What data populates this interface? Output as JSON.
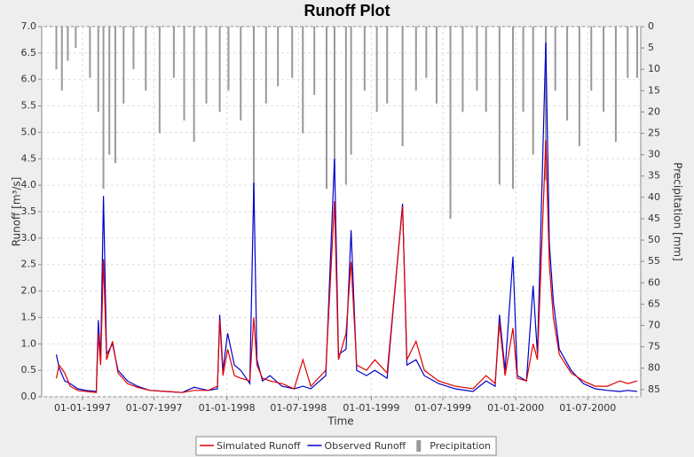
{
  "chart_data": {
    "type": "line",
    "title": "Runoff Plot",
    "x_label": "Time",
    "y_label": "Runoff [m³/s]",
    "y2_label": "Precipitation [mm]",
    "grid": true,
    "y2_inverted": true,
    "xlim": [
      "1996-09-20",
      "2000-11-12"
    ],
    "xticks": [
      {
        "value": "1997-01-01",
        "label": "01-01-1997"
      },
      {
        "value": "1997-07-01",
        "label": "01-07-1997"
      },
      {
        "value": "1998-01-01",
        "label": "01-01-1998"
      },
      {
        "value": "1998-07-01",
        "label": "01-07-1998"
      },
      {
        "value": "1999-01-01",
        "label": "01-01-1999"
      },
      {
        "value": "1999-07-01",
        "label": "01-07-1999"
      },
      {
        "value": "2000-01-01",
        "label": "01-01-2000"
      },
      {
        "value": "2000-07-01",
        "label": "01-07-2000"
      }
    ],
    "ylim": [
      0,
      7
    ],
    "yticks": [
      {
        "value": 0,
        "label": "0.0"
      },
      0.5,
      {
        "value": 1,
        "label": "1.0"
      },
      1.5,
      {
        "value": 2,
        "label": "2.0"
      },
      2.5,
      {
        "value": 3,
        "label": "3.0"
      },
      3.5,
      {
        "value": 4,
        "label": "4.0"
      },
      4.5,
      {
        "value": 5,
        "label": "5.0"
      },
      5.5,
      {
        "value": 6,
        "label": "6.0"
      },
      6.5,
      {
        "value": 7,
        "label": "7.0"
      }
    ],
    "y2lim": [
      0,
      86.7
    ],
    "y2ticks": [
      0,
      5,
      10,
      15,
      20,
      25,
      30,
      35,
      40,
      45,
      50,
      55,
      60,
      65,
      70,
      75,
      80,
      85
    ],
    "x": [
      "1996-10-27",
      "1996-11-03",
      "1996-11-17",
      "1996-12-01",
      "1996-12-20",
      "1997-01-10",
      "1997-02-05",
      "1997-02-10",
      "1997-02-16",
      "1997-02-23",
      "1997-03-03",
      "1997-03-18",
      "1997-04-01",
      "1997-04-25",
      "1997-05-20",
      "1997-06-20",
      "1997-08-01",
      "1997-09-10",
      "1997-10-10",
      "1997-11-15",
      "1997-12-08",
      "1997-12-14",
      "1997-12-22",
      "1998-01-03",
      "1998-01-20",
      "1998-02-05",
      "1998-02-28",
      "1998-03-10",
      "1998-03-18",
      "1998-04-01",
      "1998-04-20",
      "1998-05-20",
      "1998-06-20",
      "1998-07-12",
      "1998-08-01",
      "1998-09-08",
      "1998-09-30",
      "1998-10-10",
      "1998-10-29",
      "1998-11-11",
      "1998-11-25",
      "1998-12-20",
      "1999-01-10",
      "1999-02-10",
      "1999-03-21",
      "1999-04-01",
      "1999-04-24",
      "1999-05-15",
      "1999-06-20",
      "1999-08-01",
      "1999-09-15",
      "1999-10-18",
      "1999-11-10",
      "1999-11-21",
      "1999-12-05",
      "1999-12-25",
      "2000-01-05",
      "2000-01-28",
      "2000-02-14",
      "2000-02-25",
      "2000-03-17",
      "2000-03-26",
      "2000-04-05",
      "2000-04-20",
      "2000-05-20",
      "2000-06-20",
      "2000-07-20",
      "2000-08-20",
      "2000-09-20",
      "2000-10-10",
      "2000-11-03"
    ],
    "series": [
      {
        "name": "Simulated Runoff",
        "type": "line",
        "color": "#e00000",
        "values": [
          0.35,
          0.6,
          0.45,
          0.2,
          0.12,
          0.1,
          0.08,
          1.2,
          0.6,
          2.6,
          0.7,
          1.05,
          0.45,
          0.25,
          0.18,
          0.12,
          0.1,
          0.08,
          0.12,
          0.12,
          0.2,
          1.45,
          0.4,
          0.9,
          0.4,
          0.35,
          0.3,
          1.5,
          0.6,
          0.35,
          0.3,
          0.25,
          0.15,
          0.7,
          0.2,
          0.5,
          3.7,
          0.7,
          1.2,
          2.55,
          0.6,
          0.5,
          0.7,
          0.45,
          3.6,
          0.7,
          1.05,
          0.5,
          0.3,
          0.2,
          0.15,
          0.4,
          0.25,
          1.4,
          0.4,
          1.3,
          0.35,
          0.3,
          1.0,
          0.7,
          4.85,
          2.5,
          1.5,
          0.8,
          0.45,
          0.3,
          0.2,
          0.2,
          0.3,
          0.25,
          0.3
        ]
      },
      {
        "name": "Observed Runoff",
        "type": "line",
        "color": "#0000cc",
        "values": [
          0.8,
          0.55,
          0.3,
          0.25,
          0.15,
          0.12,
          0.1,
          1.45,
          0.7,
          3.8,
          0.8,
          1.0,
          0.5,
          0.3,
          0.2,
          0.12,
          0.1,
          0.08,
          0.18,
          0.12,
          0.15,
          1.55,
          0.5,
          1.2,
          0.6,
          0.5,
          0.25,
          4.05,
          0.7,
          0.3,
          0.4,
          0.2,
          0.15,
          0.2,
          0.15,
          0.4,
          4.5,
          0.8,
          0.9,
          3.15,
          0.5,
          0.4,
          0.5,
          0.35,
          3.65,
          0.6,
          0.7,
          0.4,
          0.25,
          0.15,
          0.1,
          0.3,
          0.2,
          1.55,
          0.5,
          2.65,
          0.4,
          0.3,
          2.1,
          0.8,
          6.7,
          2.9,
          1.8,
          0.9,
          0.5,
          0.25,
          0.15,
          0.12,
          0.1,
          0.12,
          0.1
        ]
      },
      {
        "name": "Precipitation",
        "type": "bar",
        "axis": "y2",
        "color": "#999999",
        "x": [
          "1996-10-27",
          "1996-11-10",
          "1996-11-25",
          "1996-12-15",
          "1997-01-20",
          "1997-02-10",
          "1997-02-23",
          "1997-03-10",
          "1997-03-25",
          "1997-04-15",
          "1997-05-10",
          "1997-06-10",
          "1997-07-15",
          "1997-08-20",
          "1997-09-15",
          "1997-10-10",
          "1997-11-10",
          "1997-12-14",
          "1998-01-05",
          "1998-02-05",
          "1998-03-10",
          "1998-04-10",
          "1998-05-10",
          "1998-06-15",
          "1998-07-12",
          "1998-08-10",
          "1998-09-10",
          "1998-09-30",
          "1998-10-29",
          "1998-11-11",
          "1998-12-15",
          "1999-01-15",
          "1999-02-10",
          "1999-03-21",
          "1999-04-24",
          "1999-05-20",
          "1999-06-15",
          "1999-07-20",
          "1999-08-20",
          "1999-09-25",
          "1999-10-18",
          "1999-11-21",
          "1999-12-25",
          "2000-01-20",
          "2000-02-14",
          "2000-03-17",
          "2000-04-10",
          "2000-05-10",
          "2000-06-10",
          "2000-07-10",
          "2000-08-10",
          "2000-09-10",
          "2000-10-10",
          "2000-11-03"
        ],
        "values": [
          10,
          15,
          8,
          5,
          12,
          20,
          38,
          30,
          32,
          18,
          10,
          15,
          25,
          12,
          22,
          27,
          18,
          20,
          15,
          22,
          42,
          18,
          14,
          12,
          25,
          16,
          38,
          35,
          37,
          30,
          15,
          20,
          18,
          28,
          15,
          12,
          18,
          45,
          20,
          15,
          20,
          37,
          38,
          20,
          30,
          36,
          15,
          22,
          28,
          15,
          20,
          27,
          12,
          12
        ]
      }
    ]
  }
}
